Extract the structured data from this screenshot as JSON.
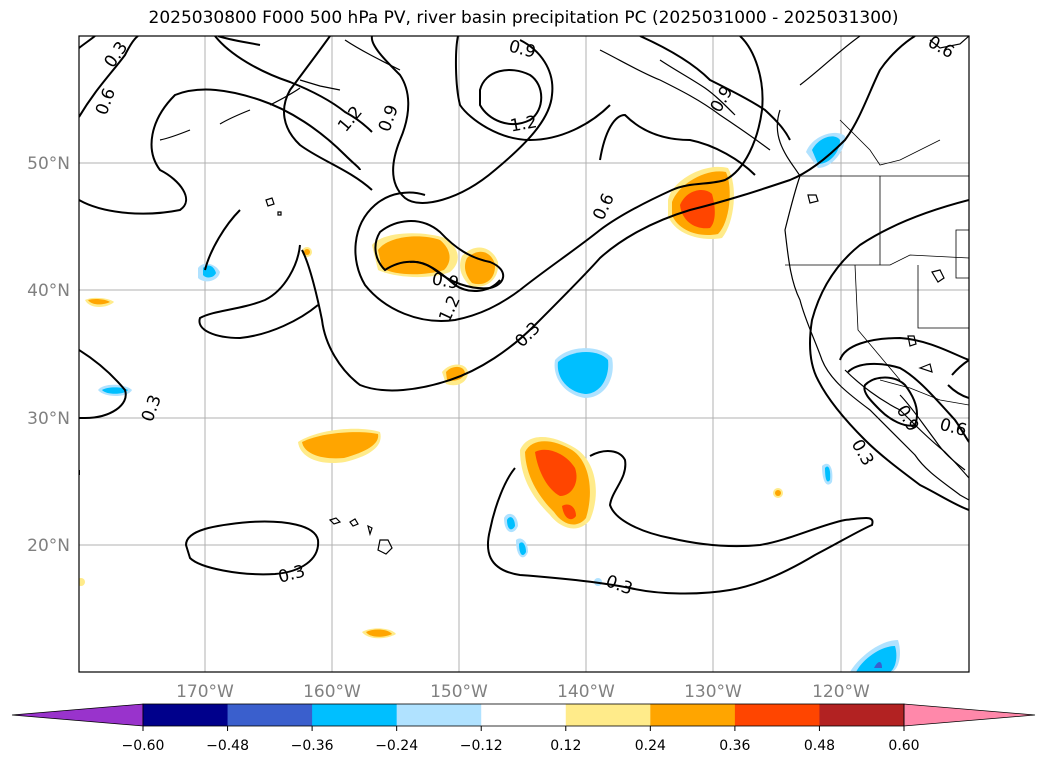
{
  "title": "2025030800 F000 500 hPa PV, river basin precipitation PC (2025031000 - 2025031300)",
  "map": {
    "lat_labels": [
      "50°N",
      "40°N",
      "30°N",
      "20°N"
    ],
    "lon_labels": [
      "170°W",
      "160°W",
      "150°W",
      "140°W",
      "130°W",
      "120°W"
    ],
    "contour_labels": [
      "0.3",
      "0.6",
      "0.9",
      "1.2",
      "0.9",
      "1.2",
      "0.6",
      "0.9",
      "1.2",
      "0.9",
      "0.6",
      "0.3",
      "0.3",
      "0.3",
      "0.3",
      "0.3",
      "0.9",
      "0.6",
      "0.3"
    ]
  },
  "colorbar": {
    "ticks": [
      "−0.60",
      "−0.48",
      "−0.36",
      "−0.24",
      "−0.12",
      "0.12",
      "0.24",
      "0.36",
      "0.48",
      "0.60"
    ],
    "colors": [
      "#9933cc",
      "#00008b",
      "#3a5fcd",
      "#00bfff",
      "#b0e2ff",
      "#ffffff",
      "#ffeb8a",
      "#ffa500",
      "#ff4500",
      "#b22222",
      "#ff88aa"
    ]
  }
}
